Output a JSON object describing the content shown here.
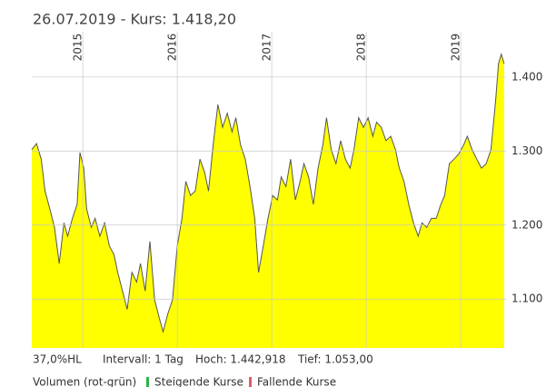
{
  "chart_data": {
    "type": "area",
    "title": "26.07.2019  -  Kurs: 1.418,20",
    "x": [
      2014.46,
      2014.51,
      2014.56,
      2014.6,
      2014.65,
      2014.7,
      2014.75,
      2014.8,
      2014.84,
      2014.89,
      2014.94,
      2014.97,
      2015.01,
      2015.04,
      2015.09,
      2015.13,
      2015.18,
      2015.23,
      2015.28,
      2015.33,
      2015.37,
      2015.42,
      2015.47,
      2015.52,
      2015.57,
      2015.61,
      2015.66,
      2015.71,
      2015.76,
      2015.81,
      2015.85,
      2015.9,
      2015.95,
      2016.0,
      2016.05,
      2016.09,
      2016.14,
      2016.19,
      2016.24,
      2016.29,
      2016.33,
      2016.38,
      2016.43,
      2016.48,
      2016.53,
      2016.58,
      2016.62,
      2016.67,
      2016.72,
      2016.77,
      2016.82,
      2016.86,
      2016.91,
      2016.96,
      2017.01,
      2017.06,
      2017.1,
      2017.15,
      2017.2,
      2017.25,
      2017.3,
      2017.34,
      2017.39,
      2017.44,
      2017.49,
      2017.54,
      2017.58,
      2017.63,
      2017.68,
      2017.73,
      2017.78,
      2017.83,
      2017.87,
      2017.92,
      2017.97,
      2018.02,
      2018.07,
      2018.11,
      2018.16,
      2018.21,
      2018.26,
      2018.31,
      2018.35,
      2018.4,
      2018.45,
      2018.5,
      2018.55,
      2018.59,
      2018.64,
      2018.69,
      2018.74,
      2018.79,
      2018.83,
      2018.88,
      2018.93,
      2018.98,
      2019.03,
      2019.07,
      2019.12,
      2019.17,
      2019.22,
      2019.27,
      2019.32,
      2019.37,
      2019.4,
      2019.43,
      2019.46
    ],
    "values": [
      1302,
      1310,
      1289,
      1246,
      1222,
      1197,
      1148,
      1203,
      1185,
      1209,
      1228,
      1298,
      1277,
      1222,
      1197,
      1209,
      1185,
      1203,
      1172,
      1160,
      1136,
      1111,
      1086,
      1136,
      1123,
      1148,
      1111,
      1178,
      1099,
      1074,
      1056,
      1080,
      1099,
      1172,
      1209,
      1259,
      1240,
      1246,
      1289,
      1271,
      1246,
      1308,
      1363,
      1332,
      1351,
      1326,
      1345,
      1308,
      1289,
      1252,
      1209,
      1136,
      1172,
      1209,
      1240,
      1234,
      1265,
      1252,
      1289,
      1234,
      1259,
      1283,
      1265,
      1228,
      1277,
      1308,
      1345,
      1302,
      1283,
      1314,
      1289,
      1277,
      1302,
      1345,
      1332,
      1345,
      1320,
      1339,
      1332,
      1314,
      1320,
      1302,
      1277,
      1259,
      1228,
      1203,
      1185,
      1203,
      1197,
      1209,
      1209,
      1228,
      1240,
      1283,
      1289,
      1296,
      1308,
      1320,
      1302,
      1289,
      1277,
      1283,
      1302,
      1369,
      1418,
      1431,
      1418
    ],
    "color": "#ffff00",
    "line_color": "#555555",
    "xlim": [
      2014.46,
      2019.48
    ],
    "xticks": [
      2015,
      2016,
      2017,
      2018,
      2019
    ],
    "ylim": [
      1034,
      1455
    ],
    "yticks": [
      {
        "value": 1100,
        "label": "1.100"
      },
      {
        "value": 1200,
        "label": "1.200"
      },
      {
        "value": 1300,
        "label": "1.300"
      },
      {
        "value": 1400,
        "label": "1.400"
      }
    ],
    "grid": true
  },
  "footer": {
    "hl": "37,0%HL",
    "interval": "Intervall: 1 Tag",
    "high": "Hoch: 1.442,918",
    "low": "Tief: 1.053,00"
  },
  "legend": {
    "volume": "Volumen (rot-grün)",
    "rising": "Steigende Kurse",
    "rising_color": "#2bb34a",
    "falling": "Fallende Kurse",
    "falling_color": "#e05a6a"
  }
}
